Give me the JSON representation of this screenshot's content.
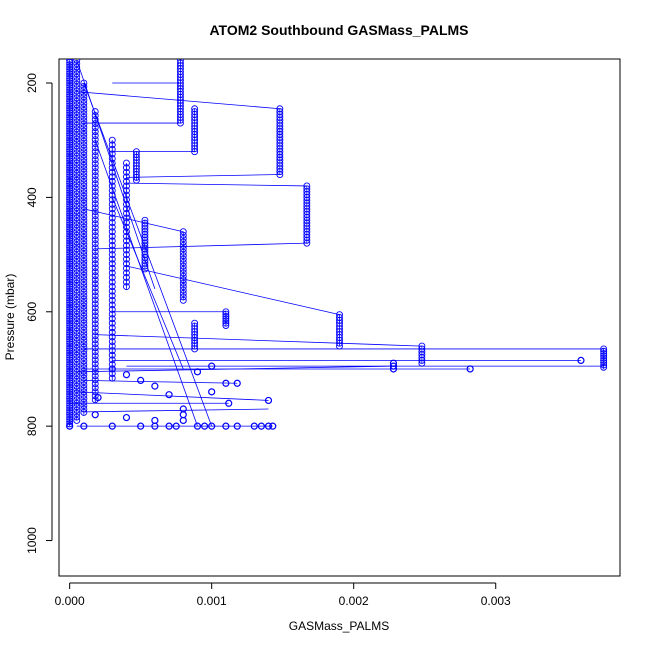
{
  "chart_data": {
    "type": "scatter",
    "title": "ATOM2 Southbound GASMass_PALMS",
    "xlabel": "GASMass_PALMS",
    "ylabel": "Pressure (mbar)",
    "xlim": [
      -7.5e-05,
      0.003875
    ],
    "ylim": [
      1062,
      158
    ],
    "y_reversed": true,
    "x_ticks": [
      0.0,
      0.001,
      0.002,
      0.003
    ],
    "x_tick_labels": [
      "0.000",
      "0.001",
      "0.002",
      "0.003"
    ],
    "y_ticks": [
      200,
      400,
      600,
      800,
      1000
    ],
    "y_tick_labels": [
      "200",
      "400",
      "600",
      "800",
      "1000"
    ],
    "grid": false,
    "legend": "none",
    "colors": {
      "series": "#0000ff",
      "axis": "#000000"
    },
    "series": [
      {
        "marker": "open-circle",
        "line": true,
        "profiles": [
          {
            "x": 0.0,
            "p_start": 160,
            "p_end": 800,
            "step": 4
          },
          {
            "x": 5e-05,
            "p_start": 160,
            "p_end": 790,
            "step": 6
          },
          {
            "x": 0.0001,
            "p_start": 200,
            "p_end": 780,
            "step": 6
          },
          {
            "x": 0.00018,
            "p_start": 250,
            "p_end": 760,
            "step": 7
          },
          {
            "x": 0.0003,
            "p_start": 300,
            "p_end": 720,
            "step": 8
          },
          {
            "x": 0.0004,
            "p_start": 340,
            "p_end": 560,
            "step": 8
          },
          {
            "x": 0.00047,
            "p_start": 320,
            "p_end": 370,
            "step": 5
          },
          {
            "x": 0.00053,
            "p_start": 440,
            "p_end": 525,
            "step": 5
          },
          {
            "x": 0.00078,
            "p_start": 160,
            "p_end": 270,
            "step": 5
          },
          {
            "x": 0.00088,
            "p_start": 245,
            "p_end": 320,
            "step": 5
          },
          {
            "x": 0.0008,
            "p_start": 460,
            "p_end": 580,
            "step": 6
          },
          {
            "x": 0.00088,
            "p_start": 620,
            "p_end": 665,
            "step": 5
          },
          {
            "x": 0.0011,
            "p_start": 600,
            "p_end": 625,
            "step": 4
          },
          {
            "x": 0.00148,
            "p_start": 245,
            "p_end": 360,
            "step": 5
          },
          {
            "x": 0.00167,
            "p_start": 380,
            "p_end": 480,
            "step": 5
          },
          {
            "x": 0.0019,
            "p_start": 605,
            "p_end": 660,
            "step": 5
          },
          {
            "x": 0.00248,
            "p_start": 660,
            "p_end": 690,
            "step": 5
          },
          {
            "x": 0.00376,
            "p_start": 665,
            "p_end": 700,
            "step": 4
          }
        ],
        "points": [
          [
            0.00228,
            690
          ],
          [
            0.00228,
            695
          ],
          [
            0.00228,
            700
          ],
          [
            0.00282,
            700
          ],
          [
            0.0036,
            685
          ],
          [
            0.001,
            740
          ],
          [
            0.0011,
            725
          ],
          [
            0.00118,
            725
          ],
          [
            0.00112,
            760
          ],
          [
            0.0014,
            755
          ],
          [
            0.0008,
            770
          ],
          [
            0.0008,
            780
          ],
          [
            0.0008,
            790
          ],
          [
            0.0003,
            700
          ],
          [
            0.0004,
            710
          ],
          [
            0.0005,
            720
          ],
          [
            0.0006,
            730
          ],
          [
            0.0007,
            745
          ],
          [
            0.0009,
            705
          ],
          [
            0.001,
            695
          ],
          [
            0.0,
            800
          ],
          [
            0.0001,
            800
          ],
          [
            0.0003,
            800
          ],
          [
            0.0005,
            800
          ],
          [
            0.0006,
            800
          ],
          [
            0.0007,
            800
          ],
          [
            0.00075,
            800
          ],
          [
            0.0009,
            800
          ],
          [
            0.00095,
            800
          ],
          [
            0.001,
            800
          ],
          [
            0.0011,
            800
          ],
          [
            0.00118,
            800
          ],
          [
            0.0013,
            800
          ],
          [
            0.00135,
            800
          ],
          [
            0.0014,
            800
          ],
          [
            0.00143,
            800
          ],
          [
            0.00018,
            780
          ],
          [
            0.0004,
            785
          ],
          [
            0.0006,
            790
          ],
          [
            0.0002,
            750
          ]
        ],
        "connectors": [
          [
            [
              0.0003,
              200
            ],
            [
              0.00078,
              200
            ]
          ],
          [
            [
              5e-05,
              215
            ],
            [
              0.00148,
              245
            ]
          ],
          [
            [
              0.0001,
              270
            ],
            [
              0.00078,
              270
            ]
          ],
          [
            [
              0.0003,
              320
            ],
            [
              0.00088,
              320
            ]
          ],
          [
            [
              0.0004,
              365
            ],
            [
              0.00148,
              360
            ]
          ],
          [
            [
              0.0004,
              375
            ],
            [
              0.00167,
              380
            ]
          ],
          [
            [
              0.0001,
              420
            ],
            [
              0.0008,
              460
            ]
          ],
          [
            [
              0.00018,
              490
            ],
            [
              0.00167,
              480
            ]
          ],
          [
            [
              0.0004,
              520
            ],
            [
              0.0019,
              605
            ]
          ],
          [
            [
              0.0003,
              600
            ],
            [
              0.0011,
              600
            ]
          ],
          [
            [
              0.00018,
              640
            ],
            [
              0.00248,
              660
            ]
          ],
          [
            [
              0.0001,
              665
            ],
            [
              0.00376,
              665
            ]
          ],
          [
            [
              0.0003,
              685
            ],
            [
              0.0036,
              685
            ]
          ],
          [
            [
              0.0004,
              695
            ],
            [
              0.00376,
              695
            ]
          ],
          [
            [
              0.0001,
              700
            ],
            [
              0.00282,
              700
            ]
          ],
          [
            [
              5e-05,
              705
            ],
            [
              0.00228,
              695
            ]
          ],
          [
            [
              0.0001,
              720
            ],
            [
              0.00118,
              725
            ]
          ],
          [
            [
              5e-05,
              740
            ],
            [
              0.0014,
              755
            ]
          ],
          [
            [
              0.0,
              760
            ],
            [
              0.00112,
              760
            ]
          ],
          [
            [
              0.0001,
              775
            ],
            [
              0.0014,
              770
            ]
          ],
          [
            [
              0.0001,
              200
            ],
            [
              0.001,
              800
            ]
          ],
          [
            [
              0.00018,
              300
            ],
            [
              0.0009,
              800
            ]
          ],
          [
            [
              0.0003,
              400
            ],
            [
              0.0008,
              700
            ]
          ],
          [
            [
              5e-05,
              160
            ],
            [
              0.0006,
              560
            ]
          ],
          [
            [
              5e-05,
              800
            ],
            [
              0.00143,
              800
            ]
          ]
        ]
      }
    ]
  }
}
